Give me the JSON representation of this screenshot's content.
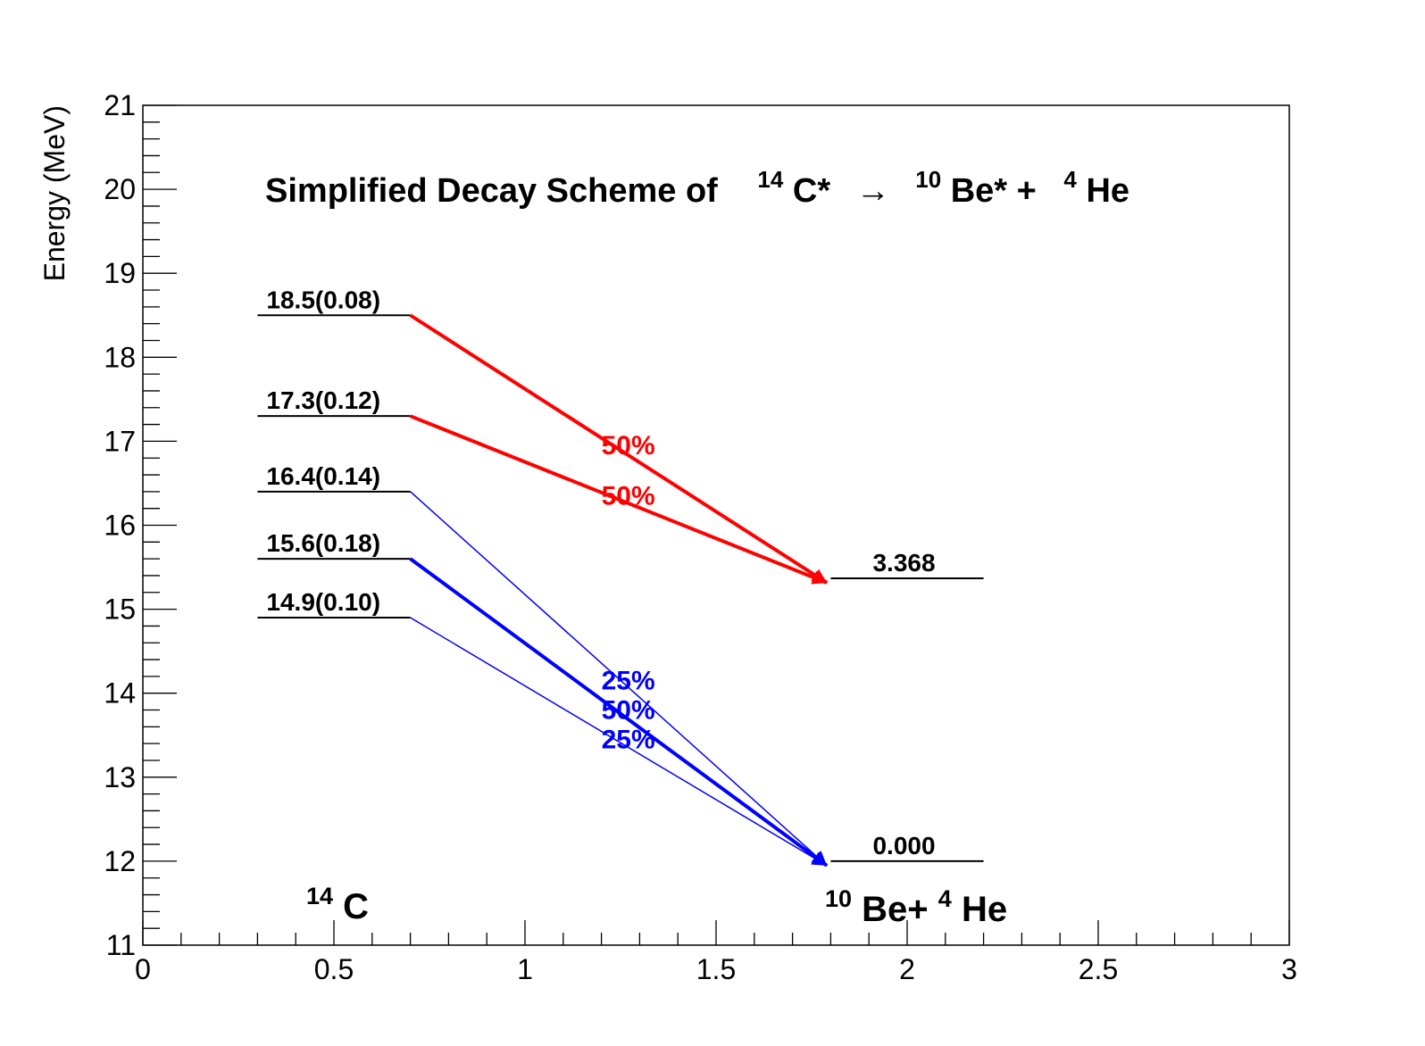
{
  "chart_data": {
    "type": "diagram",
    "title": {
      "prefix": "Simplified Decay Scheme of",
      "parent_sup": "14",
      "parent": "C*",
      "arrow": "→",
      "daughter_sup": "10",
      "daughter": "Be* +",
      "alpha_sup": "4",
      "alpha": "He"
    },
    "ylabel": "Energy (MeV)",
    "xlim": [
      0,
      3
    ],
    "ylim": [
      11,
      21
    ],
    "xticks": [
      "0",
      "0.5",
      "1",
      "1.5",
      "2",
      "2.5",
      "3"
    ],
    "yticks": [
      "11",
      "12",
      "13",
      "14",
      "15",
      "16",
      "17",
      "18",
      "19",
      "20",
      "21"
    ],
    "parent_label": {
      "sup": "14",
      "text": "C"
    },
    "daughter_label": {
      "sup": "10",
      "text": "Be+",
      "sup2": "4",
      "text2": "He"
    },
    "parent_levels": [
      {
        "energy": 18.5,
        "label": "18.5(0.08)"
      },
      {
        "energy": 17.3,
        "label": "17.3(0.12)"
      },
      {
        "energy": 16.4,
        "label": "16.4(0.14)"
      },
      {
        "energy": 15.6,
        "label": "15.6(0.18)"
      },
      {
        "energy": 14.9,
        "label": "14.9(0.10)"
      }
    ],
    "daughter_levels": [
      {
        "energy": 15.368,
        "label": "3.368"
      },
      {
        "energy": 12.0,
        "label": "0.000"
      }
    ],
    "transitions": [
      {
        "from": 18.5,
        "to": 15.368,
        "label": "50%",
        "label_y": 16.95,
        "color": "#ff0000",
        "thick": true
      },
      {
        "from": 17.3,
        "to": 15.368,
        "label": "50%",
        "label_y": 16.35,
        "color": "#ff0000",
        "thick": true
      },
      {
        "from": 16.4,
        "to": 12.0,
        "label": "25%",
        "label_y": 14.15,
        "color": "#0000ff",
        "thick": false
      },
      {
        "from": 15.6,
        "to": 12.0,
        "label": "50%",
        "label_y": 13.8,
        "color": "#0000ff",
        "thick": true
      },
      {
        "from": 14.9,
        "to": 12.0,
        "label": "25%",
        "label_y": 13.45,
        "color": "#0000ff",
        "thick": false
      }
    ],
    "parent_level_x": [
      0.3,
      0.7
    ],
    "daughter_level_x": [
      1.8,
      2.2
    ],
    "arrow_tip_x": 1.79,
    "label_x": 1.2,
    "grid": false,
    "legend": "none"
  }
}
